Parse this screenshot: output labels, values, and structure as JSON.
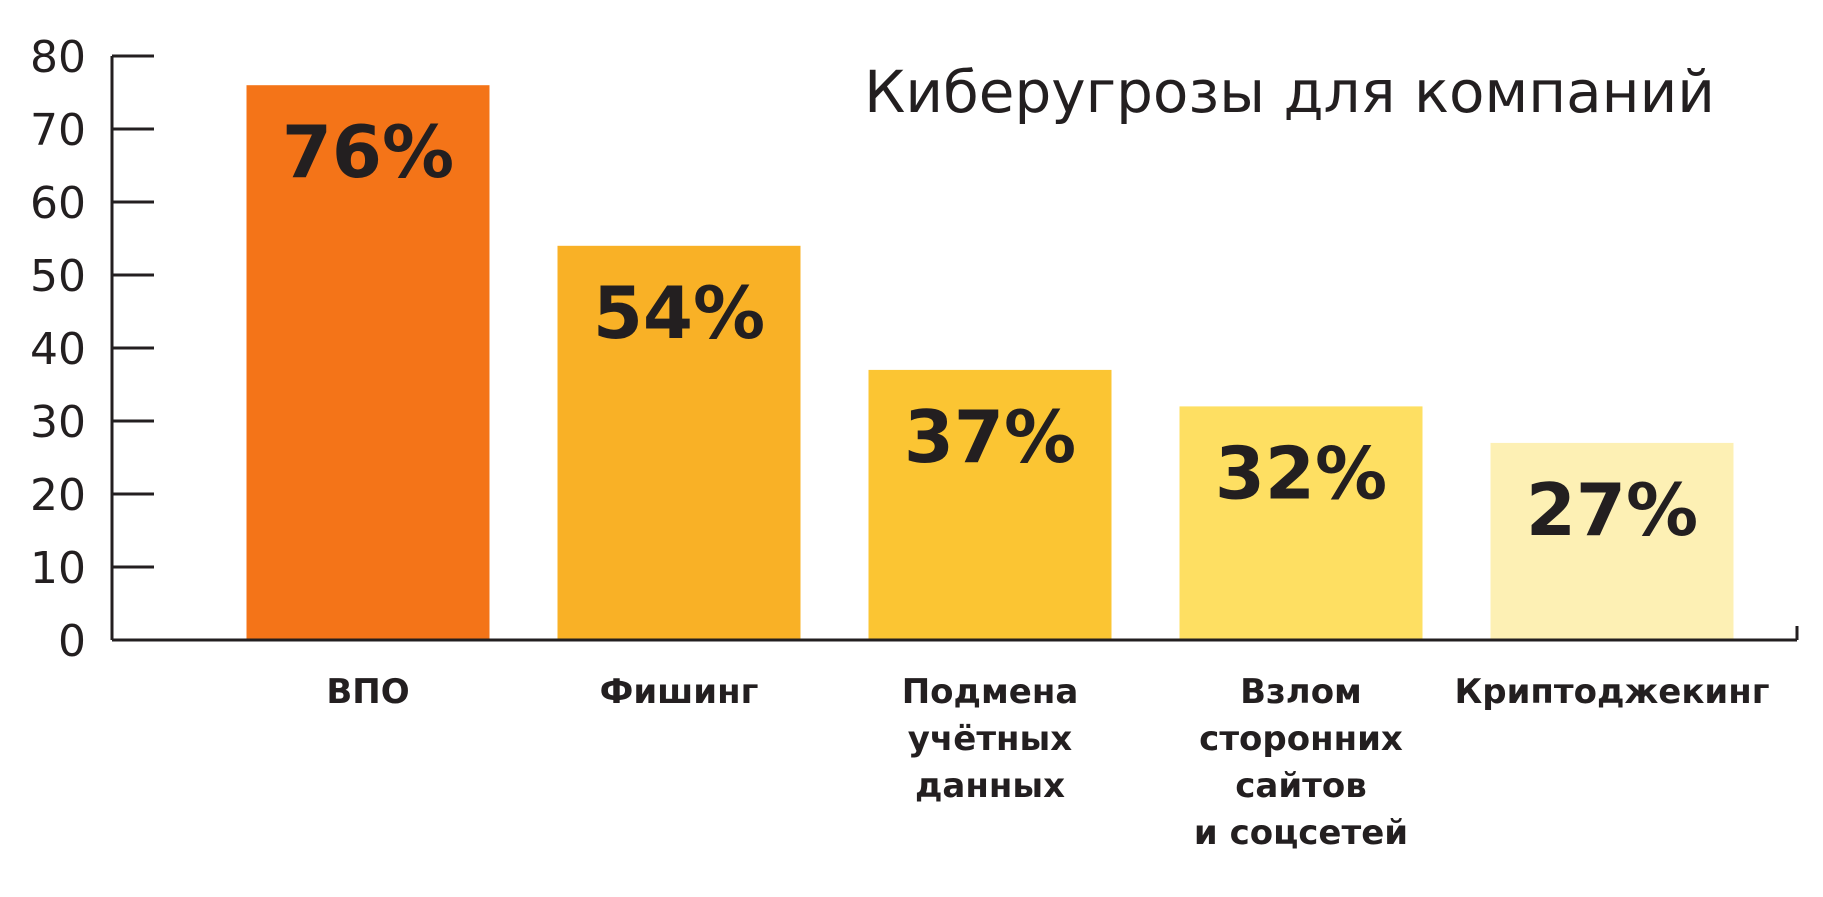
{
  "chart_data": {
    "type": "bar",
    "title": "Киберугрозы для компаний",
    "xlabel": "",
    "ylabel": "",
    "ylim": [
      0,
      80
    ],
    "yticks": [
      0,
      10,
      20,
      30,
      40,
      50,
      60,
      70,
      80
    ],
    "grid": false,
    "categories": [
      [
        "ВПО"
      ],
      [
        "Фишинг"
      ],
      [
        "Подмена",
        "учётных",
        "данных"
      ],
      [
        "Взлом",
        "сторонних",
        "сайтов",
        "и соцсетей"
      ],
      [
        "Криптоджекинг"
      ]
    ],
    "values": [
      76,
      54,
      37,
      32,
      27
    ],
    "value_labels": [
      "76%",
      "54%",
      "37%",
      "32%",
      "27%"
    ],
    "colors": [
      "#f47418",
      "#f9b126",
      "#fbc533",
      "#fedf62",
      "#fdf0b4"
    ]
  }
}
